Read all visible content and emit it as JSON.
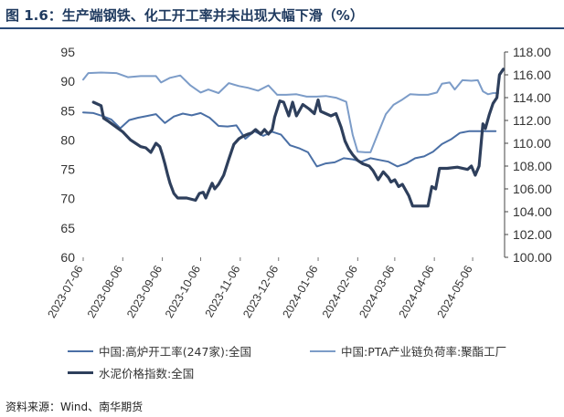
{
  "title": "图 1.6：生产端钢铁、化工开工率并未出现大幅下滑（%）",
  "source": "资料来源：Wind、南华期货",
  "chart_data": {
    "type": "line",
    "x_tick_labels": [
      "2023-07-06",
      "2023-08-06",
      "2023-09-06",
      "2023-10-06",
      "2023-11-06",
      "2023-12-06",
      "2024-01-06",
      "2024-02-06",
      "2024-03-06",
      "2024-04-06",
      "2024-05-06"
    ],
    "y_left": {
      "ylim": [
        60,
        95
      ],
      "ticks": [
        "60",
        "65",
        "70",
        "75",
        "80",
        "85",
        "90",
        "95"
      ]
    },
    "y_right": {
      "ylim": [
        100,
        118
      ],
      "ticks": [
        "100.00",
        "102.00",
        "104.00",
        "106.00",
        "108.00",
        "110.00",
        "112.00",
        "114.00",
        "116.00",
        "118.00"
      ]
    },
    "series": [
      {
        "name": "中国:高炉开工率(247家):全国",
        "axis": "left",
        "color": "#4a6fa5",
        "width": 2,
        "points": [
          [
            "2023-07-06",
            84.7
          ],
          [
            "2023-07-14",
            84.6
          ],
          [
            "2023-07-21",
            84.1
          ],
          [
            "2023-07-28",
            83.5
          ],
          [
            "2023-08-04",
            82.0
          ],
          [
            "2023-08-11",
            83.4
          ],
          [
            "2023-08-18",
            83.8
          ],
          [
            "2023-08-25",
            84.1
          ],
          [
            "2023-09-01",
            84.4
          ],
          [
            "2023-09-08",
            82.9
          ],
          [
            "2023-09-15",
            84.0
          ],
          [
            "2023-09-22",
            84.5
          ],
          [
            "2023-09-29",
            84.2
          ],
          [
            "2023-10-06",
            84.6
          ],
          [
            "2023-10-13",
            83.8
          ],
          [
            "2023-10-20",
            82.4
          ],
          [
            "2023-10-27",
            82.3
          ],
          [
            "2023-11-03",
            82.5
          ],
          [
            "2023-11-10",
            80.2
          ],
          [
            "2023-11-17",
            81.5
          ],
          [
            "2023-11-24",
            80.7
          ],
          [
            "2023-12-01",
            81.4
          ],
          [
            "2023-12-08",
            80.9
          ],
          [
            "2023-12-15",
            79.1
          ],
          [
            "2023-12-22",
            78.6
          ],
          [
            "2023-12-29",
            77.9
          ],
          [
            "2024-01-05",
            75.5
          ],
          [
            "2024-01-12",
            76.0
          ],
          [
            "2024-01-19",
            76.2
          ],
          [
            "2024-01-26",
            76.9
          ],
          [
            "2024-02-02",
            76.7
          ],
          [
            "2024-02-09",
            76.3
          ],
          [
            "2024-02-16",
            76.9
          ],
          [
            "2024-02-23",
            76.6
          ],
          [
            "2024-03-01",
            76.3
          ],
          [
            "2024-03-08",
            75.5
          ],
          [
            "2024-03-15",
            76.0
          ],
          [
            "2024-03-22",
            76.9
          ],
          [
            "2024-03-29",
            77.2
          ],
          [
            "2024-04-05",
            78.0
          ],
          [
            "2024-04-12",
            79.3
          ],
          [
            "2024-04-19",
            80.1
          ],
          [
            "2024-04-26",
            81.2
          ],
          [
            "2024-05-03",
            81.5
          ],
          [
            "2024-05-10",
            81.5
          ],
          [
            "2024-05-17",
            81.5
          ],
          [
            "2024-05-24",
            81.5
          ]
        ]
      },
      {
        "name": "中国:PTA产业链负荷率:聚酯工厂",
        "axis": "left",
        "color": "#7c9cc8",
        "width": 2,
        "points": [
          [
            "2023-07-06",
            90.3
          ],
          [
            "2023-07-10",
            91.4
          ],
          [
            "2023-07-20",
            91.5
          ],
          [
            "2023-08-01",
            91.4
          ],
          [
            "2023-08-10",
            90.7
          ],
          [
            "2023-08-20",
            90.9
          ],
          [
            "2023-09-01",
            90.9
          ],
          [
            "2023-09-05",
            89.8
          ],
          [
            "2023-09-12",
            90.6
          ],
          [
            "2023-09-20",
            91.0
          ],
          [
            "2023-09-28",
            89.3
          ],
          [
            "2023-10-06",
            88.1
          ],
          [
            "2023-10-12",
            88.6
          ],
          [
            "2023-10-20",
            88.0
          ],
          [
            "2023-10-28",
            89.7
          ],
          [
            "2023-11-05",
            89.2
          ],
          [
            "2023-11-12",
            88.9
          ],
          [
            "2023-11-20",
            88.4
          ],
          [
            "2023-11-28",
            89.3
          ],
          [
            "2023-12-05",
            87.7
          ],
          [
            "2023-12-12",
            87.7
          ],
          [
            "2023-12-20",
            87.8
          ],
          [
            "2023-12-28",
            87.4
          ],
          [
            "2024-01-05",
            87.4
          ],
          [
            "2024-01-12",
            87.5
          ],
          [
            "2024-01-20",
            87.2
          ],
          [
            "2024-01-28",
            86.5
          ],
          [
            "2024-02-02",
            80.9
          ],
          [
            "2024-02-06",
            78.0
          ],
          [
            "2024-02-12",
            77.9
          ],
          [
            "2024-02-16",
            77.9
          ],
          [
            "2024-02-22",
            81.2
          ],
          [
            "2024-02-28",
            84.4
          ],
          [
            "2024-03-05",
            86.0
          ],
          [
            "2024-03-12",
            86.9
          ],
          [
            "2024-03-18",
            87.8
          ],
          [
            "2024-03-25",
            87.7
          ],
          [
            "2024-04-01",
            87.7
          ],
          [
            "2024-04-08",
            88.1
          ],
          [
            "2024-04-12",
            89.6
          ],
          [
            "2024-04-18",
            89.8
          ],
          [
            "2024-04-22",
            88.6
          ],
          [
            "2024-04-28",
            90.2
          ],
          [
            "2024-05-05",
            90.1
          ],
          [
            "2024-05-10",
            90.2
          ],
          [
            "2024-05-14",
            88.3
          ],
          [
            "2024-05-18",
            87.8
          ],
          [
            "2024-05-22",
            88.0
          ],
          [
            "2024-05-26",
            88.0
          ]
        ]
      },
      {
        "name": "水泥价格指数:全国",
        "axis": "right",
        "color": "#2e3f5c",
        "width": 3.2,
        "points": [
          [
            "2023-07-14",
            113.6
          ],
          [
            "2023-07-20",
            113.3
          ],
          [
            "2023-07-22",
            112.2
          ],
          [
            "2023-07-26",
            111.9
          ],
          [
            "2023-07-31",
            111.5
          ],
          [
            "2023-08-06",
            111.0
          ],
          [
            "2023-08-12",
            110.3
          ],
          [
            "2023-08-16",
            110.0
          ],
          [
            "2023-08-20",
            109.7
          ],
          [
            "2023-08-24",
            109.6
          ],
          [
            "2023-08-28",
            109.2
          ],
          [
            "2023-09-01",
            110.0
          ],
          [
            "2023-09-04",
            109.7
          ],
          [
            "2023-09-06",
            109.0
          ],
          [
            "2023-09-08",
            108.2
          ],
          [
            "2023-09-10",
            107.3
          ],
          [
            "2023-09-12",
            106.5
          ],
          [
            "2023-09-15",
            105.6
          ],
          [
            "2023-09-18",
            105.2
          ],
          [
            "2023-09-25",
            105.2
          ],
          [
            "2023-10-02",
            105.0
          ],
          [
            "2023-10-05",
            105.6
          ],
          [
            "2023-10-08",
            105.7
          ],
          [
            "2023-10-10",
            105.2
          ],
          [
            "2023-10-13",
            106.0
          ],
          [
            "2023-10-15",
            106.5
          ],
          [
            "2023-10-17",
            106.0
          ],
          [
            "2023-10-20",
            106.4
          ],
          [
            "2023-10-24",
            107.2
          ],
          [
            "2023-10-28",
            108.6
          ],
          [
            "2023-11-01",
            109.9
          ],
          [
            "2023-11-05",
            110.4
          ],
          [
            "2023-11-08",
            110.6
          ],
          [
            "2023-11-12",
            110.8
          ],
          [
            "2023-11-15",
            110.9
          ],
          [
            "2023-11-18",
            111.2
          ],
          [
            "2023-11-22",
            110.8
          ],
          [
            "2023-11-25",
            111.2
          ],
          [
            "2023-11-28",
            110.8
          ],
          [
            "2023-12-01",
            111.2
          ],
          [
            "2023-12-03",
            112.3
          ],
          [
            "2023-12-05",
            113.0
          ],
          [
            "2023-12-07",
            113.7
          ],
          [
            "2023-12-10",
            113.6
          ],
          [
            "2023-12-14",
            112.4
          ],
          [
            "2023-12-17",
            113.6
          ],
          [
            "2023-12-20",
            112.4
          ],
          [
            "2023-12-25",
            113.4
          ],
          [
            "2023-12-30",
            113.0
          ],
          [
            "2024-01-03",
            112.6
          ],
          [
            "2024-01-06",
            113.8
          ],
          [
            "2024-01-08",
            112.8
          ],
          [
            "2024-01-12",
            112.6
          ],
          [
            "2024-01-16",
            112.4
          ],
          [
            "2024-01-20",
            112.6
          ],
          [
            "2024-01-24",
            111.4
          ],
          [
            "2024-01-27",
            110.2
          ],
          [
            "2024-01-30",
            109.5
          ],
          [
            "2024-02-02",
            109.0
          ],
          [
            "2024-02-06",
            108.5
          ],
          [
            "2024-02-10",
            108.2
          ],
          [
            "2024-02-15",
            108.0
          ],
          [
            "2024-02-18",
            107.6
          ],
          [
            "2024-02-22",
            106.8
          ],
          [
            "2024-02-26",
            107.5
          ],
          [
            "2024-03-01",
            107.0
          ],
          [
            "2024-03-03",
            106.6
          ],
          [
            "2024-03-06",
            106.8
          ],
          [
            "2024-03-09",
            106.2
          ],
          [
            "2024-03-12",
            106.4
          ],
          [
            "2024-03-15",
            105.8
          ],
          [
            "2024-03-17",
            105.4
          ],
          [
            "2024-03-20",
            104.5
          ],
          [
            "2024-03-26",
            104.5
          ],
          [
            "2024-04-01",
            104.5
          ],
          [
            "2024-04-04",
            106.2
          ],
          [
            "2024-04-07",
            106.0
          ],
          [
            "2024-04-10",
            107.8
          ],
          [
            "2024-04-16",
            107.8
          ],
          [
            "2024-04-24",
            107.9
          ],
          [
            "2024-05-02",
            107.7
          ],
          [
            "2024-05-05",
            108.0
          ],
          [
            "2024-05-08",
            107.2
          ],
          [
            "2024-05-11",
            108.0
          ],
          [
            "2024-05-14",
            111.7
          ],
          [
            "2024-05-16",
            111.3
          ],
          [
            "2024-05-19",
            112.5
          ],
          [
            "2024-05-22",
            113.5
          ],
          [
            "2024-05-25",
            114.0
          ],
          [
            "2024-05-27",
            116.0
          ],
          [
            "2024-05-30",
            116.5
          ]
        ]
      }
    ]
  }
}
